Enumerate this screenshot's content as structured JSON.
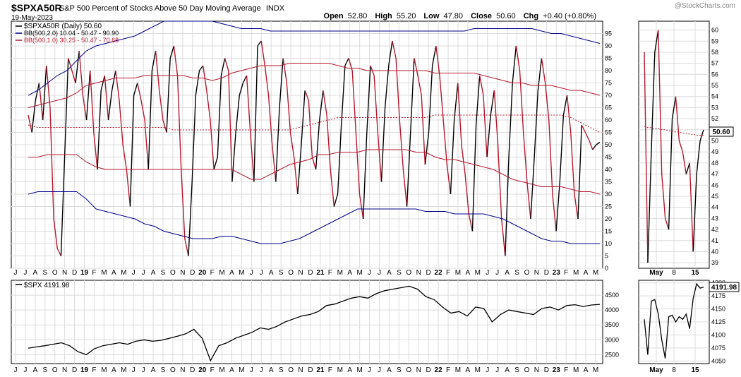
{
  "header": {
    "symbol": "$SPXA50R",
    "description": "S&P 500 Percent of Stocks Above 50 Day Moving Average",
    "exchange": "INDX",
    "date": "19-May-2023",
    "watermark": "@StockCharts.com",
    "ohlc": [
      {
        "label": "Open",
        "value": "52.80"
      },
      {
        "label": "High",
        "value": "55.20"
      },
      {
        "label": "Low",
        "value": "47.80"
      },
      {
        "label": "Close",
        "value": "50.60"
      },
      {
        "label": "Chg",
        "value": "+0.40 (+0.80%)"
      }
    ]
  },
  "legend": {
    "main": "$SPXA50R (Daily) 50.60",
    "bb2": "BB(500,2.0) 10.04 - 50.47 - 90.90",
    "bb1": "BB(500,1.0) 30.25 - 50.47 - 70.68",
    "spx": "$SPX 4191.98"
  },
  "colors": {
    "up": "#000000",
    "down": "#b5182f",
    "bb2": "#00008b",
    "bb1": "#b5182f",
    "grid": "#dcdcdc",
    "axis": "#000000"
  },
  "chart_data": [
    {
      "type": "line",
      "name": "main-panel",
      "title": "$SPXA50R S&P 500 Percent of Stocks Above 50 Day Moving Average",
      "x_labels": [
        "J",
        "J",
        "A",
        "S",
        "O",
        "N",
        "D",
        "19",
        "F",
        "M",
        "A",
        "M",
        "J",
        "J",
        "A",
        "S",
        "O",
        "N",
        "D",
        "20",
        "F",
        "M",
        "A",
        "M",
        "J",
        "J",
        "A",
        "S",
        "O",
        "N",
        "D",
        "21",
        "F",
        "M",
        "A",
        "M",
        "J",
        "J",
        "A",
        "S",
        "O",
        "N",
        "D",
        "22",
        "F",
        "M",
        "A",
        "M",
        "J",
        "J",
        "A",
        "S",
        "O",
        "N",
        "D",
        "23",
        "F",
        "M",
        "A",
        "M"
      ],
      "y_ticks": [
        0,
        5,
        10,
        15,
        20,
        25,
        30,
        35,
        40,
        45,
        50,
        55,
        60,
        65,
        70,
        75,
        80,
        85,
        90,
        95
      ],
      "ylim": [
        0,
        100
      ],
      "series": [
        {
          "name": "$SPXA50R",
          "values": [
            62,
            55,
            68,
            75,
            60,
            82,
            65,
            20,
            8,
            5,
            45,
            85,
            80,
            75,
            88,
            70,
            60,
            80,
            55,
            40,
            72,
            78,
            60,
            72,
            80,
            68,
            50,
            40,
            25,
            70,
            75,
            68,
            60,
            40,
            80,
            88,
            72,
            60,
            55,
            85,
            90,
            78,
            40,
            12,
            5,
            35,
            70,
            80,
            82,
            72,
            60,
            40,
            45,
            78,
            85,
            80,
            35,
            55,
            70,
            75,
            78,
            55,
            35,
            90,
            92,
            82,
            70,
            50,
            35,
            65,
            85,
            75,
            55,
            45,
            30,
            50,
            72,
            68,
            45,
            40,
            60,
            72,
            62,
            40,
            25,
            30,
            58,
            82,
            85,
            80,
            55,
            30,
            20,
            55,
            82,
            78,
            55,
            35,
            65,
            82,
            92,
            85,
            60,
            40,
            25,
            55,
            85,
            78,
            70,
            42,
            55,
            82,
            90,
            78,
            60,
            42,
            30,
            60,
            75,
            50,
            38,
            22,
            15,
            58,
            78,
            70,
            45,
            62,
            72,
            50,
            20,
            5,
            45,
            75,
            90,
            80,
            55,
            35,
            20,
            45,
            72,
            85,
            75,
            60,
            30,
            15,
            35,
            62,
            70,
            55,
            30,
            20,
            58,
            55,
            52,
            48,
            50,
            51
          ]
        },
        {
          "name": "BB upper 2.0",
          "values": [
            70,
            72,
            75,
            78,
            80,
            84,
            88,
            90,
            91,
            92,
            93,
            94,
            96,
            98,
            100,
            100,
            100,
            100,
            100,
            100,
            99,
            98,
            97,
            97,
            97,
            96,
            96,
            96,
            96,
            96,
            96,
            96,
            96,
            96,
            96,
            96,
            96,
            96,
            96,
            96,
            96,
            96,
            96,
            96,
            96,
            96,
            97,
            97,
            97,
            97,
            97,
            97,
            97,
            96,
            95,
            95,
            94,
            93,
            92,
            91
          ]
        },
        {
          "name": "BB upper 1.0",
          "values": [
            65,
            66,
            67,
            68,
            69,
            71,
            74,
            75,
            76,
            77,
            77,
            77,
            78,
            78,
            78,
            78,
            78,
            77,
            77,
            76,
            77,
            79,
            80,
            81,
            82,
            82,
            82,
            83,
            83,
            83,
            83,
            83,
            82,
            81,
            81,
            80,
            80,
            80,
            80,
            80,
            80,
            80,
            79,
            79,
            79,
            79,
            79,
            78,
            77,
            76,
            75,
            75,
            74,
            74,
            74,
            73,
            72,
            72,
            71,
            70
          ]
        },
        {
          "name": "BB middle",
          "values": [
            58,
            57,
            57,
            57,
            57,
            57,
            57,
            57,
            57,
            57,
            57,
            57,
            57,
            57,
            57,
            56,
            56,
            56,
            56,
            56,
            56,
            56,
            56,
            56,
            56,
            56,
            56,
            56,
            57,
            58,
            59,
            60,
            61,
            61,
            61,
            61,
            61,
            61,
            61,
            61,
            61,
            61,
            62,
            62,
            62,
            62,
            62,
            62,
            62,
            62,
            62,
            62,
            62,
            62,
            62,
            62,
            61,
            59,
            57,
            55
          ]
        },
        {
          "name": "BB lower 1.0",
          "values": [
            45,
            45,
            46,
            46,
            46,
            46,
            43,
            41,
            40,
            40,
            40,
            40,
            40,
            40,
            40,
            40,
            40,
            40,
            40,
            40,
            40,
            40,
            38,
            36,
            36,
            38,
            40,
            42,
            43,
            44,
            46,
            46,
            47,
            47,
            47,
            48,
            48,
            48,
            48,
            48,
            47,
            47,
            45,
            44,
            44,
            43,
            42,
            41,
            40,
            38,
            36,
            35,
            34,
            33,
            33,
            33,
            32,
            31,
            31,
            30
          ]
        },
        {
          "name": "BB lower 2.0",
          "values": [
            30,
            31,
            31,
            31,
            31,
            31,
            28,
            24,
            23,
            22,
            21,
            20,
            18,
            17,
            15,
            14,
            13,
            12,
            12,
            12,
            13,
            13,
            12,
            11,
            10,
            10,
            10,
            11,
            12,
            14,
            16,
            18,
            20,
            22,
            24,
            24,
            24,
            24,
            24,
            24,
            24,
            23,
            23,
            23,
            22,
            22,
            22,
            22,
            21,
            20,
            18,
            16,
            14,
            12,
            11,
            11,
            10,
            10,
            10,
            10
          ]
        }
      ]
    },
    {
      "type": "line",
      "name": "main-zoom-panel",
      "x_labels": [
        "May",
        "8",
        "15"
      ],
      "y_ticks": [
        39,
        40,
        41,
        42,
        43,
        44,
        45,
        46,
        47,
        48,
        49,
        50,
        51,
        52,
        53,
        54,
        55,
        56,
        57,
        58,
        59,
        60
      ],
      "ylim": [
        38.5,
        60.8
      ],
      "series": [
        {
          "name": "$SPXA50R",
          "values": [
            58,
            39,
            49,
            58,
            60,
            47,
            43,
            42,
            52,
            54,
            50,
            49,
            47,
            48,
            40,
            47,
            50,
            51
          ]
        },
        {
          "name": "BB middle",
          "values": [
            51.3,
            51.2,
            51.2,
            51.1,
            51.1,
            51.0,
            51.0,
            50.9,
            50.9,
            50.8,
            50.8,
            50.7,
            50.7,
            50.6,
            50.6,
            50.5,
            50.5,
            50.5
          ]
        }
      ],
      "last_value_label": "50.60"
    },
    {
      "type": "line",
      "name": "spx-panel",
      "x_labels": [
        "J",
        "J",
        "A",
        "S",
        "O",
        "N",
        "D",
        "19",
        "F",
        "M",
        "A",
        "M",
        "J",
        "J",
        "A",
        "S",
        "O",
        "N",
        "D",
        "20",
        "F",
        "M",
        "A",
        "M",
        "J",
        "J",
        "A",
        "S",
        "O",
        "N",
        "D",
        "21",
        "F",
        "M",
        "A",
        "M",
        "J",
        "J",
        "A",
        "S",
        "O",
        "N",
        "D",
        "22",
        "F",
        "M",
        "A",
        "M",
        "J",
        "J",
        "A",
        "S",
        "O",
        "N",
        "D",
        "23",
        "F",
        "M",
        "A",
        "M"
      ],
      "y_ticks": [
        2500,
        3000,
        3500,
        4000,
        4500
      ],
      "ylim": [
        2200,
        5000
      ],
      "series": [
        {
          "name": "$SPX",
          "values": [
            2720,
            2760,
            2800,
            2850,
            2900,
            2800,
            2600,
            2500,
            2700,
            2800,
            2850,
            2900,
            2850,
            2950,
            3000,
            2950,
            2980,
            3050,
            3120,
            3200,
            3350,
            3050,
            2300,
            2800,
            2900,
            3050,
            3150,
            3250,
            3400,
            3350,
            3450,
            3600,
            3700,
            3800,
            3850,
            3950,
            4150,
            4200,
            4300,
            4400,
            4450,
            4400,
            4550,
            4650,
            4700,
            4750,
            4800,
            4700,
            4450,
            4350,
            4100,
            3900,
            3950,
            3800,
            4100,
            4050,
            3600,
            3850,
            4000,
            3950,
            3900,
            3850,
            4050,
            4100,
            4000,
            4150,
            4180,
            4120,
            4170,
            4190
          ]
        }
      ]
    },
    {
      "type": "line",
      "name": "spx-zoom-panel",
      "x_labels": [
        "May",
        "8",
        "15"
      ],
      "y_ticks": [
        4050,
        4075,
        4100,
        4125,
        4150,
        4175,
        4200
      ],
      "ylim": [
        4045,
        4205
      ],
      "series": [
        {
          "name": "$SPX",
          "values": [
            4130,
            4062,
            4165,
            4168,
            4140,
            4091,
            4055,
            4135,
            4138,
            4125,
            4135,
            4130,
            4140,
            4112,
            4170,
            4198,
            4190,
            4191.98
          ]
        }
      ],
      "last_value_label": "4191.98"
    }
  ]
}
